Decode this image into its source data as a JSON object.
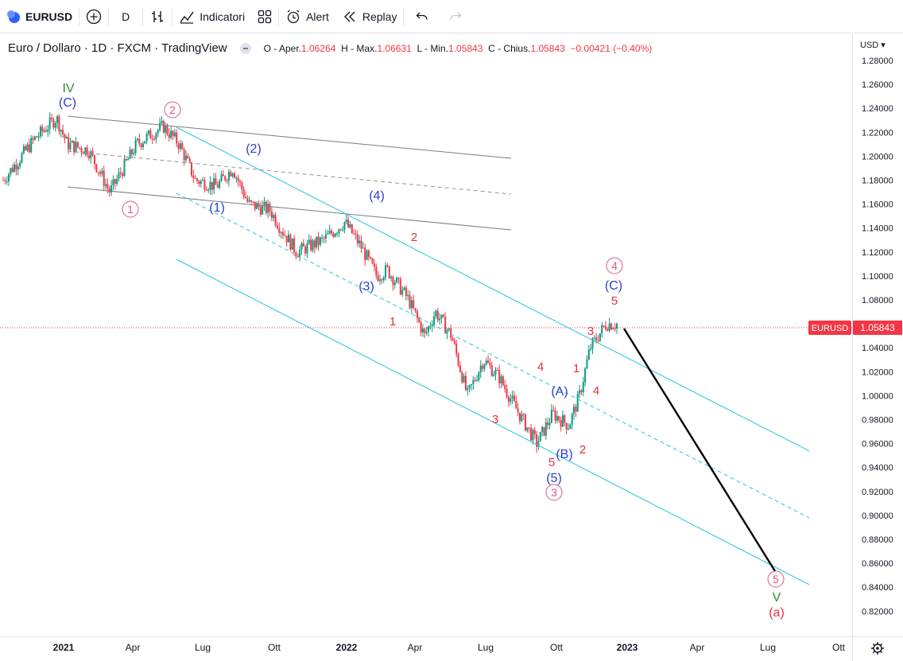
{
  "toolbar": {
    "symbol": "EURUSD",
    "interval": "D",
    "indicators_label": "Indicatori",
    "alert_label": "Alert",
    "replay_label": "Replay"
  },
  "legend": {
    "title": "Euro / Dollaro · 1D · FXCM · TradingView",
    "o_label": "O - Aper.",
    "o": "1.06264",
    "h_label": "H - Max.",
    "h": "1.06631",
    "l_label": "L - Min.",
    "l": "1.05843",
    "c_label": "C - Chius.",
    "c": "1.05843",
    "change": "−0.00421 (−0.40%)"
  },
  "price_scale": {
    "currency": "USD",
    "ticks": [
      "1.28000",
      "1.26000",
      "1.24000",
      "1.22000",
      "1.20000",
      "1.18000",
      "1.16000",
      "1.14000",
      "1.12000",
      "1.10000",
      "1.08000",
      "1.06000",
      "1.04000",
      "1.02000",
      "1.00000",
      "0.98000",
      "0.96000",
      "0.94000",
      "0.92000",
      "0.90000",
      "0.88000",
      "0.86000",
      "0.84000",
      "0.82000"
    ],
    "last_symbol": "EURUSD",
    "last_price": "1.05843"
  },
  "time_axis": [
    "2021",
    "Apr",
    "Lug",
    "Ott",
    "2022",
    "Apr",
    "Lug",
    "Ott",
    "2023",
    "Apr",
    "Lug",
    "Ott"
  ],
  "colors": {
    "up": "#089981",
    "down": "#f23645",
    "cyan": "#22c6d8",
    "grey": "#787b86",
    "blue": "#2b3fd0",
    "red": "#e0313f",
    "green": "#2e8b2e",
    "pink": "#e0558a"
  },
  "chart_data": {
    "type": "candlestick",
    "price_series": [
      [
        0.0,
        1.18
      ],
      [
        0.06,
        1.215
      ],
      [
        0.1,
        1.232
      ],
      [
        0.12,
        1.21
      ],
      [
        0.16,
        1.205
      ],
      [
        0.2,
        1.17
      ],
      [
        0.25,
        1.21
      ],
      [
        0.3,
        1.225
      ],
      [
        0.33,
        1.21
      ],
      [
        0.36,
        1.18
      ],
      [
        0.4,
        1.175
      ],
      [
        0.43,
        1.19
      ],
      [
        0.46,
        1.16
      ],
      [
        0.5,
        1.155
      ],
      [
        0.52,
        1.14
      ],
      [
        0.55,
        1.12
      ],
      [
        0.6,
        1.13
      ],
      [
        0.64,
        1.145
      ],
      [
        0.67,
        1.125
      ],
      [
        0.7,
        1.1
      ],
      [
        0.72,
        1.105
      ],
      [
        0.76,
        1.08
      ],
      [
        0.79,
        1.05
      ],
      [
        0.81,
        1.07
      ],
      [
        0.84,
        1.05
      ],
      [
        0.87,
        1.0
      ],
      [
        0.9,
        1.03
      ],
      [
        0.93,
        1.015
      ],
      [
        0.96,
        0.99
      ],
      [
        0.98,
        0.975
      ],
      [
        1.0,
        0.96
      ],
      [
        1.03,
        0.985
      ],
      [
        1.06,
        0.975
      ],
      [
        1.08,
        1.0
      ],
      [
        1.1,
        1.04
      ],
      [
        1.13,
        1.06
      ],
      [
        1.15,
        1.06
      ]
    ],
    "wave_labels": [
      {
        "t": "IV",
        "color": "green"
      },
      {
        "t": "(C)",
        "color": "blue"
      },
      {
        "t": "2",
        "color": "pink",
        "circle": true
      },
      {
        "t": "1",
        "color": "pink",
        "circle": true
      },
      {
        "t": "(2)",
        "color": "blue"
      },
      {
        "t": "(1)",
        "color": "blue"
      },
      {
        "t": "(4)",
        "color": "blue"
      },
      {
        "t": "(3)",
        "color": "blue"
      },
      {
        "t": "2",
        "color": "red"
      },
      {
        "t": "1",
        "color": "red"
      },
      {
        "t": "3",
        "color": "red"
      },
      {
        "t": "4",
        "color": "red"
      },
      {
        "t": "5",
        "color": "red"
      },
      {
        "t": "(5)",
        "color": "blue"
      },
      {
        "t": "3",
        "color": "pink",
        "circle": true
      },
      {
        "t": "(A)",
        "color": "blue"
      },
      {
        "t": "(B)",
        "color": "blue"
      },
      {
        "t": "2",
        "color": "red"
      },
      {
        "t": "4",
        "color": "red"
      },
      {
        "t": "1",
        "color": "red"
      },
      {
        "t": "3",
        "color": "red"
      },
      {
        "t": "5",
        "color": "red"
      },
      {
        "t": "(C)",
        "color": "blue"
      },
      {
        "t": "4",
        "color": "pink",
        "circle": true
      },
      {
        "t": "5",
        "color": "pink",
        "circle": true
      },
      {
        "t": "V",
        "color": "green"
      },
      {
        "t": "(a)",
        "color": "red"
      }
    ]
  }
}
